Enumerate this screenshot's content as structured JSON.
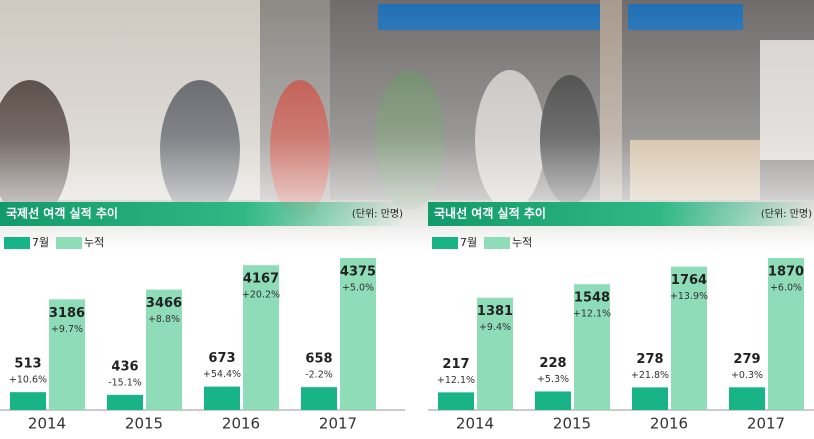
{
  "chart_data": [
    {
      "type": "bar",
      "title": "국제선 여객 실적 추이",
      "unit": "(단위: 만명)",
      "categories": [
        "2014",
        "2015",
        "2016",
        "2017"
      ],
      "series": [
        {
          "name": "7월",
          "color": "#19b388",
          "values": [
            513,
            436,
            673,
            658
          ],
          "changes": [
            "+10.6%",
            "-15.1%",
            "+54.4%",
            "-2.2%"
          ]
        },
        {
          "name": "누적",
          "color": "#8fdcb9",
          "values": [
            3186,
            3466,
            4167,
            4375
          ],
          "changes": [
            "+9.7%",
            "+8.8%",
            "+20.2%",
            "+5.0%"
          ]
        }
      ]
    },
    {
      "type": "bar",
      "title": "국내선 여객 실적 추이",
      "unit": "(단위: 만명)",
      "categories": [
        "2014",
        "2015",
        "2016",
        "2017"
      ],
      "series": [
        {
          "name": "7월",
          "color": "#19b388",
          "values": [
            217,
            228,
            278,
            279
          ],
          "changes": [
            "+12.1%",
            "+5.3%",
            "+21.8%",
            "+0.3%"
          ]
        },
        {
          "name": "누적",
          "color": "#8fdcb9",
          "values": [
            1381,
            1548,
            1764,
            1870
          ],
          "changes": [
            "+9.4%",
            "+12.1%",
            "+13.9%",
            "+6.0%"
          ]
        }
      ]
    }
  ]
}
